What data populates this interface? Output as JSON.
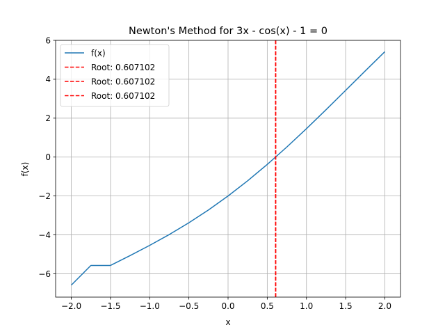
{
  "chart_data": {
    "type": "line",
    "title": "Newton's Method for 3x - cos(x) - 1 = 0",
    "xlabel": "x",
    "ylabel": "f(x)",
    "xlim": [
      -2.2,
      2.2
    ],
    "ylim": [
      -7.2,
      6.0
    ],
    "xticks": [
      -2.0,
      -1.5,
      -1.0,
      -0.5,
      0.0,
      0.5,
      1.0,
      1.5,
      2.0
    ],
    "xtick_labels": [
      "−2.0",
      "−1.5",
      "−1.0",
      "−0.5",
      "0.0",
      "0.5",
      "1.0",
      "1.5",
      "2.0"
    ],
    "yticks": [
      -6,
      -4,
      -2,
      0,
      2,
      4,
      6
    ],
    "ytick_labels": [
      "−6",
      "−4",
      "−2",
      "0",
      "2",
      "4",
      "6"
    ],
    "grid": true,
    "legend_position": "top-left",
    "series": [
      {
        "name": "f(x)",
        "color": "#1f77b4",
        "style": "solid",
        "x": [
          -2.0,
          -1.75,
          -1.5,
          -1.25,
          -1.0,
          -0.75,
          -0.5,
          -0.25,
          0.0,
          0.25,
          0.5,
          0.75,
          1.0,
          1.25,
          1.5,
          1.75,
          2.0
        ],
        "y": [
          -6.584,
          -5.572,
          -5.571,
          -5.065,
          -4.54,
          -3.982,
          -3.378,
          -2.719,
          -2.0,
          -1.219,
          -0.378,
          0.518,
          1.46,
          2.435,
          3.429,
          4.428,
          5.416
        ]
      }
    ],
    "vlines": [
      {
        "name": "Root: 0.607102",
        "x": 0.607102,
        "color": "#ff0000",
        "style": "dashed"
      },
      {
        "name": "Root: 0.607102",
        "x": 0.607102,
        "color": "#ff0000",
        "style": "dashed"
      },
      {
        "name": "Root: 0.607102",
        "x": 0.607102,
        "color": "#ff0000",
        "style": "dashed"
      }
    ]
  }
}
